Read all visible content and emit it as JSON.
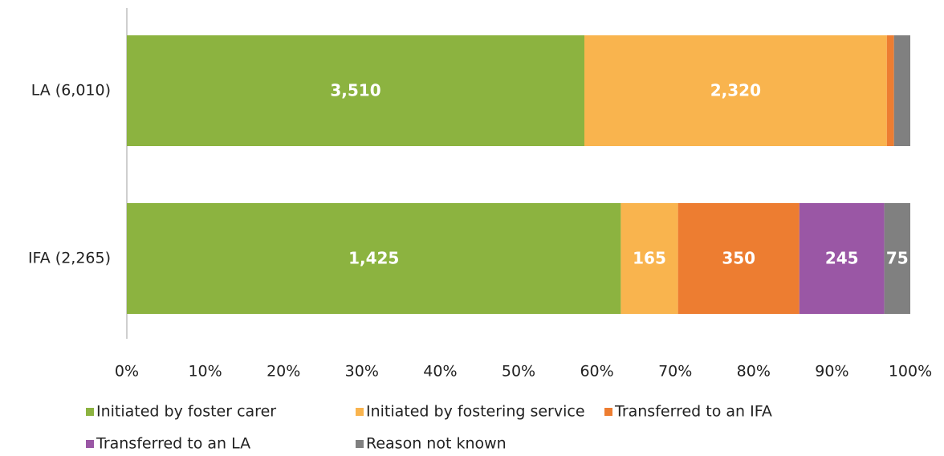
{
  "chart_data": {
    "type": "stacked-bar-100",
    "orientation": "horizontal",
    "categories": [
      "LA (6,010)",
      "IFA (2,265)"
    ],
    "series": [
      {
        "name": "Initiated by foster carer",
        "color": "#8cb340",
        "values": [
          3510,
          1425
        ],
        "value_labels": [
          "3,510",
          "1,425"
        ]
      },
      {
        "name": "Initiated by fostering service",
        "color": "#f9b44e",
        "values": [
          2320,
          165
        ],
        "value_labels": [
          "2,320",
          "165"
        ]
      },
      {
        "name": "Transferred to an IFA",
        "color": "#ed7d31",
        "values": [
          55,
          350
        ],
        "value_labels": [
          null,
          "350"
        ]
      },
      {
        "name": "Transferred to an LA",
        "color": "#9a57a5",
        "values": [
          0,
          245
        ],
        "value_labels": [
          null,
          "245"
        ]
      },
      {
        "name": "Reason not known",
        "color": "#808080",
        "values": [
          125,
          75
        ],
        "value_labels": [
          null,
          "75"
        ]
      }
    ],
    "xlim": [
      0,
      100
    ],
    "xticks": [
      {
        "value": 0,
        "label": "0%"
      },
      {
        "value": 10,
        "label": "10%"
      },
      {
        "value": 20,
        "label": "20%"
      },
      {
        "value": 30,
        "label": "30%"
      },
      {
        "value": 40,
        "label": "40%"
      },
      {
        "value": 50,
        "label": "50%"
      },
      {
        "value": 60,
        "label": "60%"
      },
      {
        "value": 70,
        "label": "70%"
      },
      {
        "value": 80,
        "label": "80%"
      },
      {
        "value": 90,
        "label": "90%"
      },
      {
        "value": 100,
        "label": "100%"
      }
    ],
    "legend": "bottom"
  }
}
